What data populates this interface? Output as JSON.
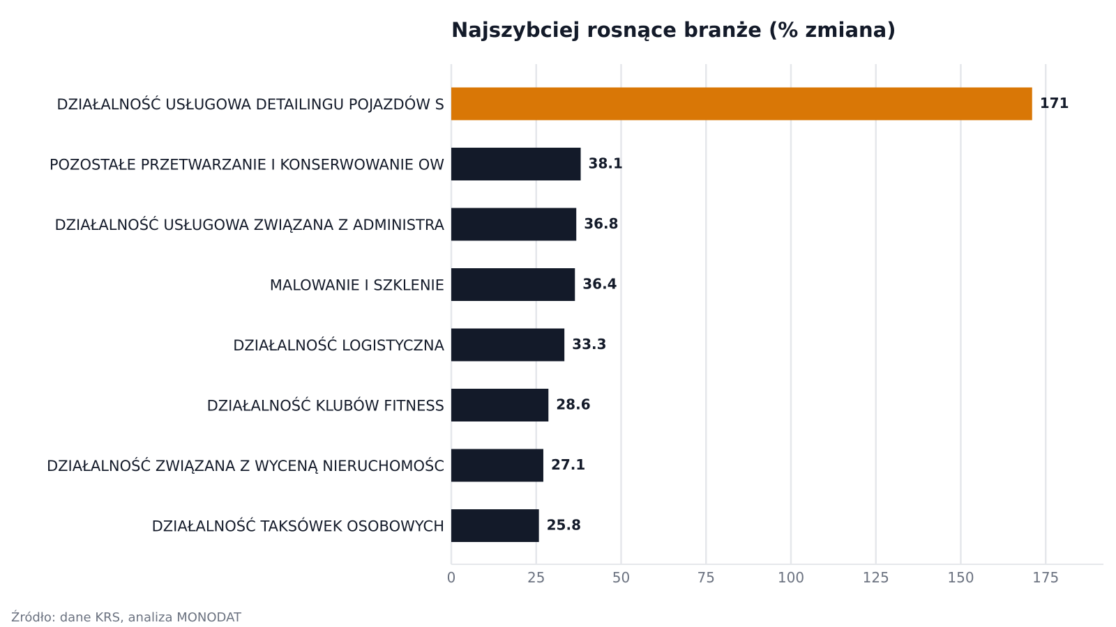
{
  "chart_data": {
    "type": "bar",
    "orientation": "horizontal",
    "title": "Najszybciej rosnące branże (% zmiana)",
    "xlabel": "",
    "ylabel": "",
    "categories": [
      "DZIAŁALNOŚĆ USŁUGOWA DETAILINGU POJAZDÓW S",
      "POZOSTAŁE PRZETWARZANIE I KONSERWOWANIE OW",
      "DZIAŁALNOŚĆ USŁUGOWA ZWIĄZANA Z ADMINISTRA",
      "MALOWANIE I SZKLENIE",
      "DZIAŁALNOŚĆ LOGISTYCZNA",
      "DZIAŁALNOŚĆ KLUBÓW FITNESS",
      "DZIAŁALNOŚĆ ZWIĄZANA Z WYCENĄ NIERUCHOMOŚC",
      "DZIAŁALNOŚĆ TAKSÓWEK OSOBOWYCH"
    ],
    "values": [
      171,
      38.1,
      36.8,
      36.4,
      33.3,
      28.6,
      27.1,
      25.8
    ],
    "value_labels": [
      "171",
      "38.1",
      "36.8",
      "36.4",
      "33.3",
      "28.6",
      "27.1",
      "25.8"
    ],
    "xlim": [
      0,
      192
    ],
    "xticks": [
      0,
      25,
      50,
      75,
      100,
      125,
      150,
      175
    ],
    "xtick_labels": [
      "0",
      "25",
      "50",
      "75",
      "100",
      "125",
      "150",
      "175"
    ],
    "grid": true,
    "colors": {
      "highlight": "#d97706",
      "default": "#131a29",
      "grid": "#e5e7eb",
      "tick_text": "#6b7280",
      "text": "#131a29"
    },
    "highlight_index": 0
  },
  "footer": {
    "source": "Źródło: dane KRS, analiza MONODAT"
  }
}
